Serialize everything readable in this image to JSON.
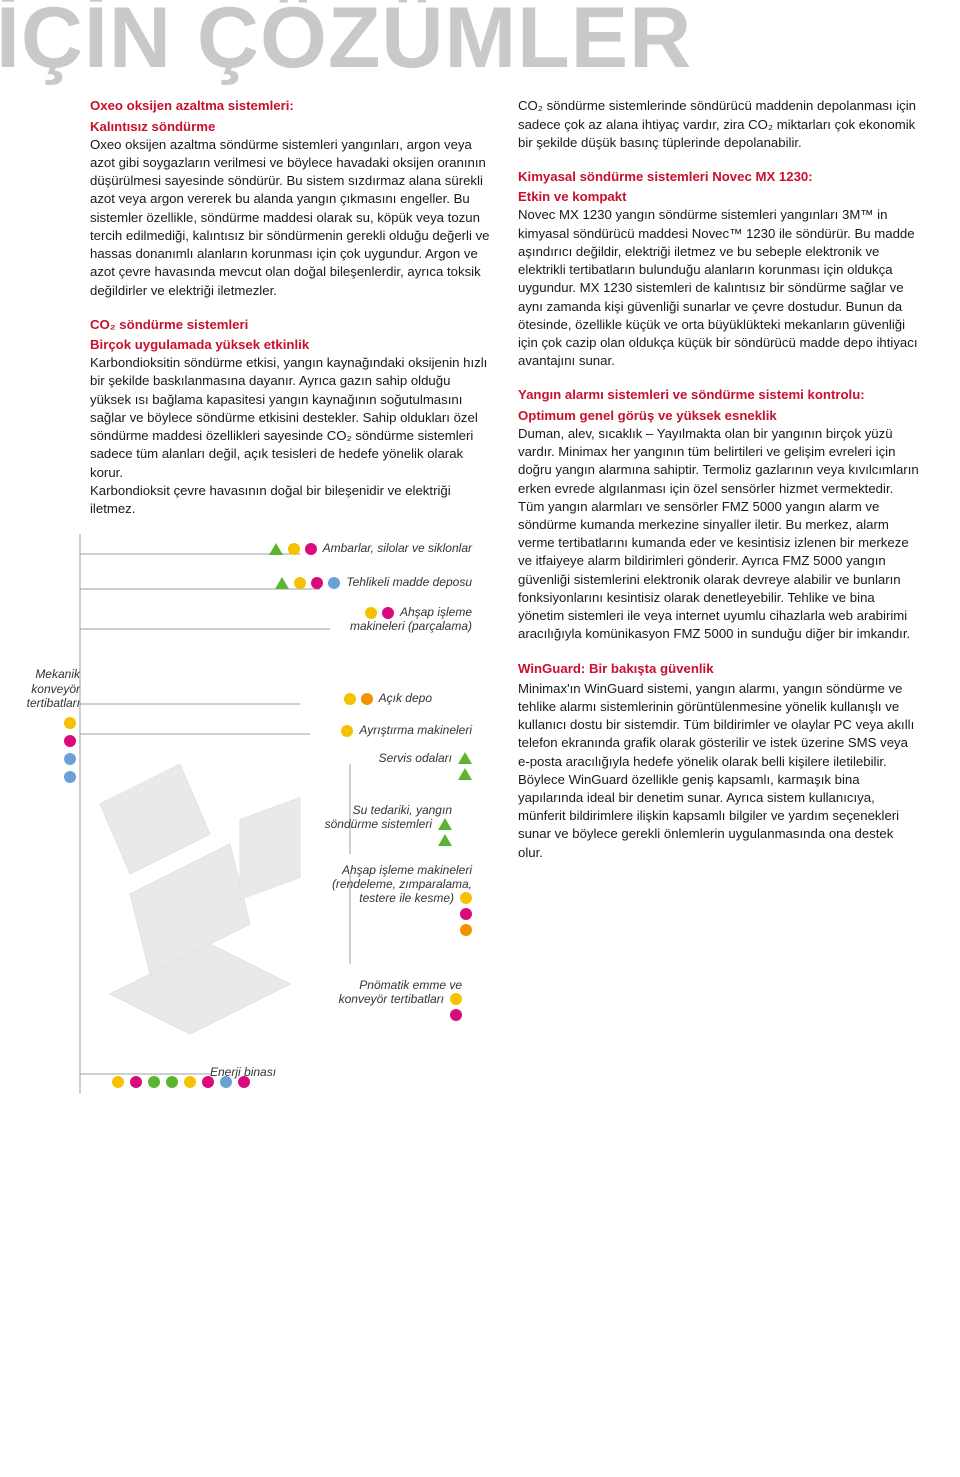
{
  "colors": {
    "title_gray": "#c9c9c9",
    "accent_red": "#c8102e",
    "body_text": "#1a1a1a",
    "yellow": "#f6c200",
    "magenta": "#d90b7a",
    "green": "#5cb531",
    "blue": "#6aa2d8",
    "orange": "#f39200"
  },
  "title": "İÇİN ÇÖZÜMLER",
  "left_label": "Mekanik konveyör tertibatları",
  "left_dots": [
    "#f6c200",
    "#d90b7a",
    "#6aa2d8",
    "#6aa2d8"
  ],
  "col1": {
    "s1_head": "Oxeo oksijen azaltma sistemleri:",
    "s1_sub": "Kalıntısız söndürme",
    "s1_body": "Oxeo oksijen azaltma söndürme sistemleri yangınları, argon veya azot gibi soygazların verilmesi ve böylece havadaki oksijen oranının düşürülmesi sayesinde söndürür. Bu sistem sızdırmaz alana sürekli azot veya argon vererek bu alanda yangın çıkmasını engeller. Bu sistemler özellikle, söndürme maddesi olarak su, köpük veya tozun tercih edilmediği, kalıntısız bir söndürmenin gerekli olduğu değerli ve hassas donanımlı alanların korunması için çok uygundur. Argon ve azot çevre havasında mevcut olan doğal bileşenlerdir, ayrıca toksik değildirler ve elektriği iletmezler.",
    "s2_head": "CO₂ söndürme sistemleri",
    "s2_sub": "Birçok uygulamada yüksek etkinlik",
    "s2_body": "Karbondioksitin söndürme etkisi, yangın kaynağındaki oksijenin hızlı bir şekilde baskılanmasına dayanır. Ayrıca gazın sahip olduğu yüksek ısı bağlama kapasitesi yangın kaynağının soğutulmasını sağlar ve böylece söndürme etkisini destekler. Sahip oldukları özel söndürme maddesi özellikleri sayesinde CO₂ söndürme sistemleri sadece tüm alanları değil, açık tesisleri de hedefe yönelik olarak korur.\nKarbondioksit çevre havasının doğal bir bileşenidir ve elektriği iletmez."
  },
  "col2": {
    "s1_body": "CO₂ söndürme sistemlerinde söndürücü maddenin depolanması için sadece çok az alana ihtiyaç vardır, zira CO₂ miktarları çok ekonomik bir şekilde düşük basınç tüplerinde depolanabilir.",
    "s2_head": "Kimyasal söndürme sistemleri Novec MX 1230:",
    "s2_sub": "Etkin ve kompakt",
    "s2_body": "Novec MX 1230 yangın söndürme sistemleri yangınları 3M™ in kimyasal söndürücü maddesi Novec™ 1230 ile söndürür. Bu madde aşındırıcı değildir, elektriği iletmez ve bu sebeple elektronik ve elektrikli tertibatların bulunduğu alanların korunması için oldukça uygundur. MX 1230 sistemleri de kalıntısız bir söndürme sağlar ve aynı zamanda kişi güvenliği sunarlar ve çevre dostudur. Bunun da ötesinde, özellikle küçük ve orta büyüklükteki mekanların güvenliği için çok cazip olan oldukça küçük bir söndürücü madde depo ihtiyacı avantajını sunar.",
    "s3_head": "Yangın alarmı sistemleri ve söndürme sistemi kontrolu:",
    "s3_sub": "Optimum genel görüş ve yüksek esneklik",
    "s3_body": "Duman, alev, sıcaklık – Yayılmakta olan bir yangının birçok yüzü vardır. Minimax her yangının tüm belirtileri ve gelişim evreleri için doğru yangın alarmına sahiptir. Termoliz gazlarının veya kıvılcımların erken evrede algılanması için özel sensörler hizmet vermektedir.\nTüm yangın alarmları ve sensörler FMZ 5000 yangın alarm ve söndürme kumanda merkezine sinyaller iletir. Bu merkez, alarm verme tertibatlarını kumanda eder ve kesintisiz izlenen bir merkeze ve itfaiyeye alarm bildirimleri gönderir. Ayrıca FMZ 5000 yangın güvenliği sistemlerini elektronik olarak devreye alabilir ve bunların fonksiyonlarını kesintisiz olarak denetleyebilir. Tehlike ve bina yönetim sistemleri ile veya internet uyumlu cihazlarla web arabirimi aracılığıyla komünikasyon FMZ 5000 in sunduğu diğer bir imkandır.",
    "s4_head": "WinGuard: Bir bakışta güvenlik",
    "s4_body": "Minimax'ın WinGuard sistemi, yangın alarmı, yangın söndürme ve tehlike alarmı sistemlerinin görüntülenmesine yönelik kullanışlı ve kullanıcı dostu bir sistemdir. Tüm bildirimler ve olaylar PC veya akıllı telefon ekranında grafik olarak gösterilir ve istek üzerine SMS veya e-posta aracılığıyla hedefe yönelik olarak belli kişilere iletilebilir. Böylece WinGuard özellikle geniş kapsamlı, karmaşık bina yapılarında ideal bir denetim sunar. Ayrıca sistem kullanıcıya, münferit bildirimlere ilişkin kapsamlı bilgiler ve yardım seçenekleri sunar ve böylece gerekli önlemlerin uygulanmasında ona destek olur."
  },
  "legend": {
    "l1": {
      "text": "Ambarlar, silolar ve siklonlar",
      "shapes": [
        {
          "t": "tri",
          "c": "#5cb531"
        },
        {
          "t": "dot",
          "c": "#f6c200"
        },
        {
          "t": "dot",
          "c": "#d90b7a"
        }
      ]
    },
    "l2": {
      "text": "Tehlikeli madde deposu",
      "shapes": [
        {
          "t": "tri",
          "c": "#5cb531"
        },
        {
          "t": "dot",
          "c": "#f6c200"
        },
        {
          "t": "dot",
          "c": "#d90b7a"
        },
        {
          "t": "dot",
          "c": "#6aa2d8"
        }
      ]
    },
    "l3": {
      "text": "Ahşap işleme makineleri (parçalama)",
      "shapes": [
        {
          "t": "dot",
          "c": "#f6c200"
        },
        {
          "t": "dot",
          "c": "#d90b7a"
        }
      ]
    },
    "l4": {
      "text": "Açık depo",
      "shapes": [
        {
          "t": "dot",
          "c": "#f6c200"
        },
        {
          "t": "dot",
          "c": "#f39200"
        }
      ]
    },
    "l5": {
      "text": "Ayrıştırma makineleri",
      "shapes": [
        {
          "t": "dot",
          "c": "#f6c200"
        }
      ]
    },
    "l6": {
      "text": "Servis odaları",
      "shapes_v": [
        {
          "t": "tri",
          "c": "#5cb531"
        },
        {
          "t": "tri",
          "c": "#5cb531"
        }
      ]
    },
    "l7": {
      "text": "Su tedariki, yangın söndürme sistemleri",
      "shapes_v": [
        {
          "t": "tri",
          "c": "#5cb531"
        },
        {
          "t": "tri",
          "c": "#5cb531"
        }
      ]
    },
    "l8": {
      "text": "Ahşap işleme makineleri (rendeleme, zımparalama, testere ile kesme)",
      "shapes_v": [
        {
          "t": "dot",
          "c": "#f6c200"
        },
        {
          "t": "dot",
          "c": "#d90b7a"
        },
        {
          "t": "dot",
          "c": "#f39200"
        }
      ]
    },
    "l9": {
      "text": "Pnömatik emme ve konveyör tertibatları",
      "shapes_v": [
        {
          "t": "dot",
          "c": "#f6c200"
        },
        {
          "t": "dot",
          "c": "#d90b7a"
        }
      ]
    },
    "l10": {
      "text": "Enerji binası"
    }
  },
  "bottom_dots": [
    "#f6c200",
    "#d90b7a",
    "#5cb531",
    "#5cb531",
    "#f6c200",
    "#d90b7a",
    "#6aa2d8",
    "#d90b7a"
  ]
}
